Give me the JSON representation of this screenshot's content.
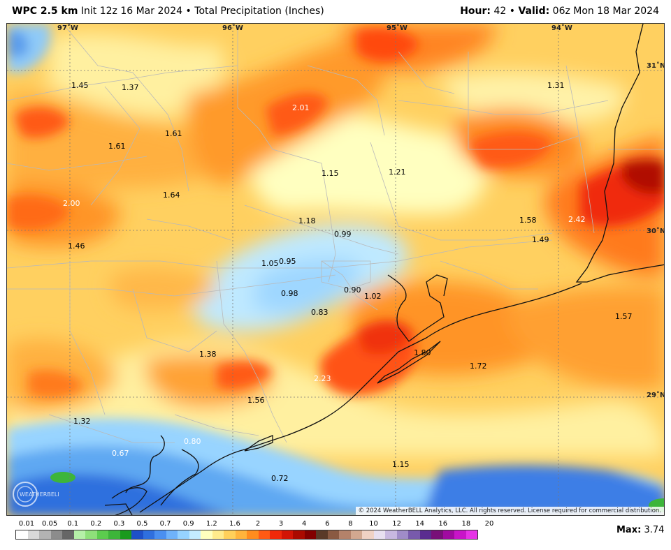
{
  "header": {
    "model": "WPC 2.5 km",
    "init": "Init 12z 16 Mar 2024",
    "bullet": "•",
    "product": "Total Precipitation (Inches)",
    "hour_label": "Hour:",
    "hour_value": "42",
    "valid_label": "Valid:",
    "valid_value": "06z Mon 18 Mar 2024"
  },
  "coords": {
    "lon": [
      "97˚W",
      "96˚W",
      "95˚W",
      "94˚W"
    ],
    "lat": [
      "31˚N",
      "30˚N",
      "29˚N"
    ]
  },
  "values": [
    {
      "text": "1.45",
      "light": false
    },
    {
      "text": "1.37",
      "light": false
    },
    {
      "text": "2.01",
      "light": true
    },
    {
      "text": "1.31",
      "light": false
    },
    {
      "text": "1.61",
      "light": false
    },
    {
      "text": "1.61",
      "light": false
    },
    {
      "text": "1.15",
      "light": false
    },
    {
      "text": "1.21",
      "light": false
    },
    {
      "text": "2.00",
      "light": true
    },
    {
      "text": "1.64",
      "light": false
    },
    {
      "text": "1.58",
      "light": false
    },
    {
      "text": "2.42",
      "light": true
    },
    {
      "text": "1.18",
      "light": false
    },
    {
      "text": "0.99",
      "light": false
    },
    {
      "text": "1.46",
      "light": false
    },
    {
      "text": "1.49",
      "light": false
    },
    {
      "text": "1.05",
      "light": false
    },
    {
      "text": "0.95",
      "light": false
    },
    {
      "text": "0.98",
      "light": false
    },
    {
      "text": "0.90",
      "light": false
    },
    {
      "text": "1.02",
      "light": false
    },
    {
      "text": "0.83",
      "light": false
    },
    {
      "text": "1.57",
      "light": false
    },
    {
      "text": "1.38",
      "light": false
    },
    {
      "text": "1.80",
      "light": false
    },
    {
      "text": "1.72",
      "light": false
    },
    {
      "text": "2.23",
      "light": true
    },
    {
      "text": "1.56",
      "light": false
    },
    {
      "text": "1.32",
      "light": false
    },
    {
      "text": "0.80",
      "light": true
    },
    {
      "text": "0.67",
      "light": true
    },
    {
      "text": "1.15",
      "light": false
    },
    {
      "text": "0.72",
      "light": false
    }
  ],
  "copyright": "© 2024 WeatherBELL Analytics, LLC. All rights reserved. License required for commercial distribution.",
  "legend": {
    "ticks": [
      "0.01",
      "0.05",
      "0.1",
      "0.2",
      "0.3",
      "0.5",
      "0.7",
      "0.9",
      "1.2",
      "1.6",
      "2",
      "3",
      "4",
      "6",
      "8",
      "10",
      "12",
      "14",
      "16",
      "18",
      "20"
    ],
    "colors": [
      "#ffffff",
      "#d9d9d9",
      "#b3b3b3",
      "#8c8c8c",
      "#666666",
      "#b5f0a8",
      "#8ee07a",
      "#5ccc4e",
      "#3db53a",
      "#1a9a1e",
      "#1e50c8",
      "#2f6fde",
      "#4a8ff0",
      "#6fb2fa",
      "#96d2ff",
      "#c4ecff",
      "#ffffbe",
      "#ffeb8c",
      "#ffd05a",
      "#ffb43c",
      "#ff8c1e",
      "#ff5a14",
      "#f0280a",
      "#d21405",
      "#aa0a00",
      "#820000",
      "#5a3a28",
      "#8a5a42",
      "#b4826a",
      "#d2a890",
      "#f0d2c4",
      "#e8e0f0",
      "#c8b8e0",
      "#a08cc8",
      "#785aac",
      "#5a2c90",
      "#781078",
      "#a00aa0",
      "#c814c8",
      "#e632e6"
    ]
  },
  "max": {
    "label": "Max:",
    "value": "3.74"
  }
}
